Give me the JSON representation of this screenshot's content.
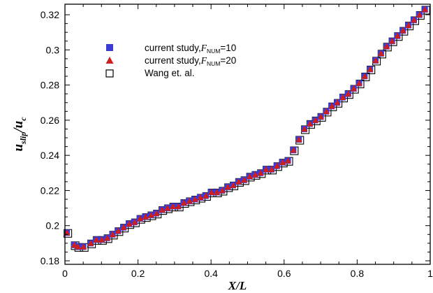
{
  "chart_data": {
    "type": "scatter",
    "xlabel": "X/L",
    "ylabel_main": "u",
    "ylabel_sub1": "slip",
    "ylabel_sep": "/",
    "ylabel_main2": "u",
    "ylabel_sub2": "c",
    "xlim": [
      0,
      1
    ],
    "ylim": [
      0.178,
      0.326
    ],
    "x_ticks": [
      0,
      0.2,
      0.4,
      0.6,
      0.8,
      1
    ],
    "x_tick_labels": [
      "0",
      "0.2",
      "0.4",
      "0.6",
      "0.8",
      "1"
    ],
    "y_ticks": [
      0.18,
      0.2,
      0.22,
      0.24,
      0.26,
      0.28,
      0.3,
      0.32
    ],
    "y_tick_labels": [
      "0.18",
      "0.2",
      "0.22",
      "0.24",
      "0.26",
      "0.28",
      "0.3",
      "0.32"
    ],
    "legend_position": "top-left",
    "grid": false,
    "series": [
      {
        "name_prefix": "current study,",
        "name_var": "F",
        "name_sub": "NUM",
        "name_suffix": "=10",
        "marker": "filled-square",
        "color": "#3b3bd6"
      },
      {
        "name_prefix": "current study,",
        "name_var": "F",
        "name_sub": "NUM",
        "name_suffix": "=20",
        "marker": "filled-triangle",
        "color": "#cc1f1f"
      },
      {
        "name_prefix": "Wang et. al.",
        "name_var": "",
        "name_sub": "",
        "name_suffix": "",
        "marker": "open-square",
        "color": "#000000"
      }
    ],
    "x": [
      0.005,
      0.025,
      0.035,
      0.05,
      0.07,
      0.085,
      0.1,
      0.115,
      0.13,
      0.145,
      0.16,
      0.175,
      0.19,
      0.205,
      0.22,
      0.235,
      0.25,
      0.265,
      0.28,
      0.295,
      0.31,
      0.325,
      0.34,
      0.355,
      0.37,
      0.385,
      0.4,
      0.415,
      0.43,
      0.445,
      0.46,
      0.475,
      0.49,
      0.505,
      0.52,
      0.535,
      0.55,
      0.565,
      0.58,
      0.595,
      0.61,
      0.625,
      0.64,
      0.655,
      0.67,
      0.685,
      0.7,
      0.715,
      0.73,
      0.745,
      0.76,
      0.775,
      0.79,
      0.805,
      0.82,
      0.835,
      0.85,
      0.865,
      0.88,
      0.895,
      0.91,
      0.925,
      0.94,
      0.955,
      0.97,
      0.985
    ],
    "y": [
      0.196,
      0.189,
      0.188,
      0.188,
      0.19,
      0.192,
      0.192,
      0.193,
      0.195,
      0.197,
      0.199,
      0.201,
      0.202,
      0.204,
      0.205,
      0.206,
      0.207,
      0.209,
      0.21,
      0.211,
      0.211,
      0.213,
      0.214,
      0.215,
      0.216,
      0.217,
      0.219,
      0.219,
      0.22,
      0.222,
      0.223,
      0.225,
      0.226,
      0.228,
      0.229,
      0.23,
      0.232,
      0.232,
      0.234,
      0.236,
      0.237,
      0.243,
      0.249,
      0.255,
      0.258,
      0.26,
      0.262,
      0.265,
      0.268,
      0.27,
      0.273,
      0.275,
      0.278,
      0.281,
      0.285,
      0.289,
      0.294,
      0.298,
      0.302,
      0.305,
      0.308,
      0.311,
      0.314,
      0.317,
      0.32,
      0.323
    ]
  }
}
